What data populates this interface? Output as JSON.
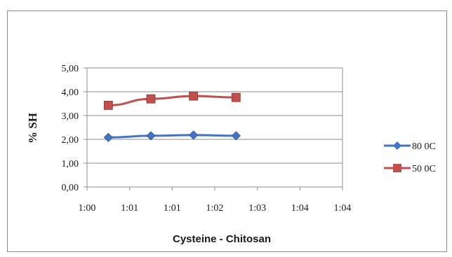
{
  "chart_data": {
    "type": "line",
    "xlabel": "Cysteine - Chitosan",
    "ylabel": "% SH",
    "y_ticks": [
      "0,00",
      "1,00",
      "2,00",
      "3,00",
      "4,00",
      "5,00"
    ],
    "x_ticks": [
      "1:00",
      "1:01",
      "1:01",
      "1:02",
      "1:03",
      "1:04",
      "1:04"
    ],
    "ylim": [
      0,
      5
    ],
    "grid": true,
    "legend_position": "right",
    "series": [
      {
        "name": "80 0C",
        "color": "#4472c4",
        "marker": "diamond",
        "points": [
          {
            "x": 0.5,
            "y": 2.08
          },
          {
            "x": 1.5,
            "y": 2.15
          },
          {
            "x": 2.5,
            "y": 2.18
          },
          {
            "x": 3.5,
            "y": 2.15
          }
        ]
      },
      {
        "name": "50 0C",
        "color": "#c0504d",
        "marker": "square",
        "points": [
          {
            "x": 0.5,
            "y": 3.43
          },
          {
            "x": 1.5,
            "y": 3.7
          },
          {
            "x": 2.5,
            "y": 3.82
          },
          {
            "x": 3.5,
            "y": 3.76
          }
        ]
      }
    ]
  }
}
